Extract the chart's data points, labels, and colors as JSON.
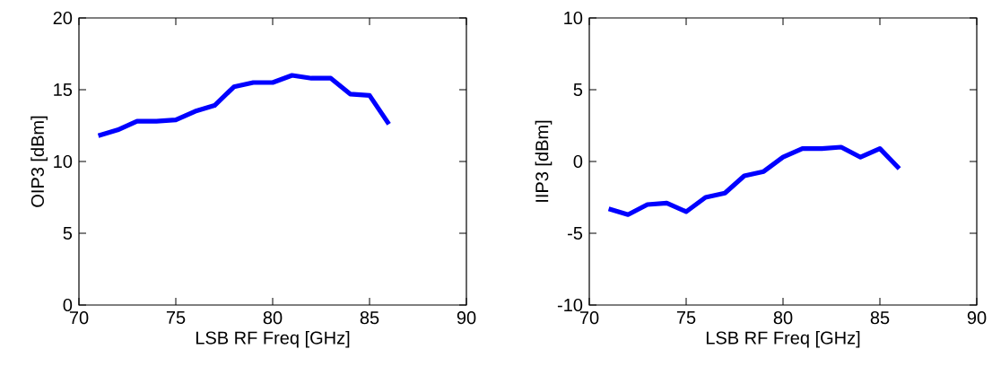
{
  "chart_data": [
    {
      "type": "line",
      "xlabel": "LSB RF Freq [GHz]",
      "ylabel": "OIP3 [dBm]",
      "xlim": [
        70,
        90
      ],
      "ylim": [
        0,
        20
      ],
      "xticks": [
        70,
        75,
        80,
        85,
        90
      ],
      "yticks": [
        0,
        5,
        10,
        15,
        20
      ],
      "series": [
        {
          "color": "#0000ff",
          "x": [
            71,
            72,
            73,
            74,
            75,
            76,
            77,
            78,
            79,
            80,
            81,
            82,
            83,
            84,
            85,
            86
          ],
          "values": [
            11.8,
            12.2,
            12.8,
            12.8,
            12.9,
            13.5,
            13.9,
            15.2,
            15.5,
            15.5,
            16.0,
            15.8,
            15.8,
            14.7,
            14.6,
            12.6
          ]
        }
      ]
    },
    {
      "type": "line",
      "xlabel": "LSB RF Freq [GHz]",
      "ylabel": "IIP3 [dBm]",
      "xlim": [
        70,
        90
      ],
      "ylim": [
        -10,
        10
      ],
      "xticks": [
        70,
        75,
        80,
        85,
        90
      ],
      "yticks": [
        -10,
        -5,
        0,
        5,
        10
      ],
      "series": [
        {
          "color": "#0000ff",
          "x": [
            71,
            72,
            73,
            74,
            75,
            76,
            77,
            78,
            79,
            80,
            81,
            82,
            83,
            84,
            85,
            86
          ],
          "values": [
            -3.3,
            -3.7,
            -3.0,
            -2.9,
            -3.5,
            -2.5,
            -2.2,
            -1.0,
            -0.7,
            0.3,
            0.9,
            0.9,
            1.0,
            0.3,
            0.9,
            -0.5
          ]
        }
      ]
    }
  ]
}
